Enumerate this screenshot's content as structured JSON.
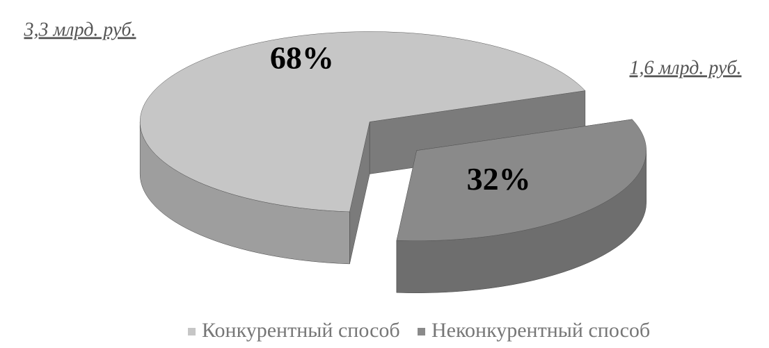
{
  "chart_data": {
    "type": "pie3d",
    "categories": [
      "Конкурентный способ",
      "Неконкурентный способ"
    ],
    "values": [
      68,
      32
    ],
    "value_labels": [
      "68%",
      "32%"
    ],
    "colors": [
      "#c6c6c6",
      "#8a8a8a"
    ],
    "annotations": [
      "3,3 млрд. руб.",
      "1,6 млрд. руб."
    ]
  }
}
